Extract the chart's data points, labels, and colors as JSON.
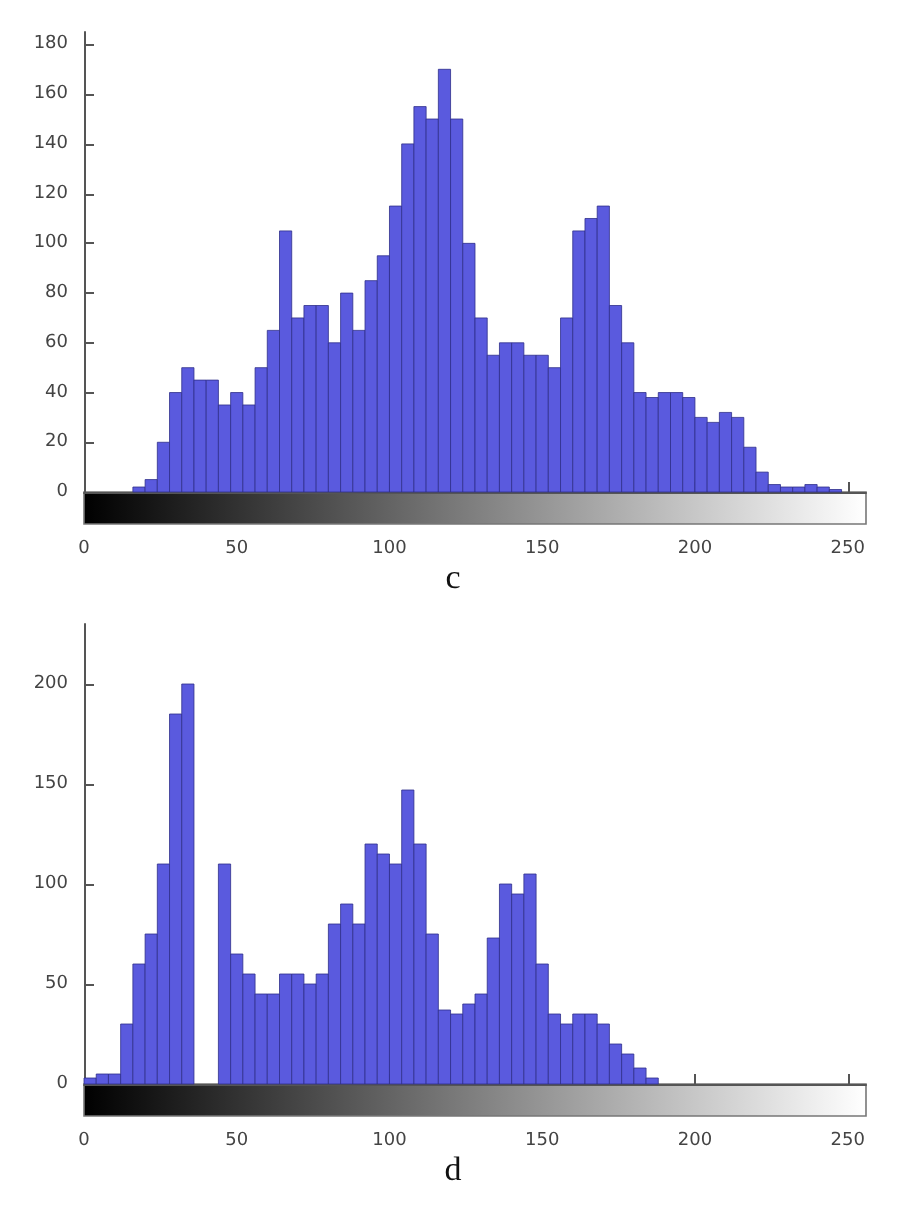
{
  "chart_data": [
    {
      "type": "histogram",
      "color": "#5a5ade",
      "bins": [
        0,
        4,
        8,
        12,
        16,
        20,
        24,
        28,
        32,
        36,
        40,
        44,
        48,
        52,
        56,
        60,
        64,
        68,
        72,
        76,
        80,
        84,
        88,
        92,
        96,
        100,
        104,
        108,
        112,
        116,
        120,
        124,
        128,
        132,
        136,
        140,
        144,
        148,
        152,
        156,
        160,
        164,
        168,
        172,
        176,
        180,
        184,
        188,
        192,
        196,
        200,
        204,
        208,
        212,
        216,
        220,
        224,
        228,
        232,
        236,
        240,
        244,
        248,
        252,
        256
      ],
      "values": [
        0,
        0,
        0,
        0,
        2,
        5,
        20,
        40,
        50,
        45,
        45,
        35,
        40,
        35,
        50,
        65,
        105,
        70,
        75,
        75,
        60,
        80,
        65,
        85,
        95,
        115,
        140,
        155,
        150,
        170,
        150,
        100,
        70,
        55,
        60,
        60,
        55,
        55,
        50,
        70,
        105,
        110,
        115,
        75,
        60,
        40,
        38,
        40,
        40,
        38,
        30,
        28,
        32,
        30,
        18,
        8,
        3,
        2,
        2,
        3,
        2,
        1,
        0,
        0
      ],
      "xlim": [
        0,
        256
      ],
      "xticks": [
        0,
        50,
        100,
        150,
        200,
        250
      ],
      "ylim": [
        0,
        185
      ],
      "yticks": [
        0,
        20,
        40,
        60,
        80,
        100,
        120,
        140,
        160,
        180
      ],
      "annotations": [
        "c"
      ]
    },
    {
      "type": "histogram",
      "color": "#5a5ade",
      "bins": [
        0,
        4,
        8,
        12,
        16,
        20,
        24,
        28,
        32,
        36,
        40,
        44,
        48,
        52,
        56,
        60,
        64,
        68,
        72,
        76,
        80,
        84,
        88,
        92,
        96,
        100,
        104,
        108,
        112,
        116,
        120,
        124,
        128,
        132,
        136,
        140,
        144,
        148,
        152,
        156,
        160,
        164,
        168,
        172,
        176,
        180,
        184,
        188,
        192,
        196,
        200,
        204,
        208,
        212,
        216,
        220,
        224,
        228,
        232,
        236,
        240,
        244,
        248,
        252,
        256
      ],
      "values": [
        3,
        5,
        5,
        30,
        60,
        75,
        110,
        185,
        200,
        null,
        null,
        110,
        65,
        55,
        45,
        45,
        55,
        55,
        50,
        55,
        80,
        90,
        80,
        120,
        115,
        110,
        147,
        120,
        75,
        37,
        35,
        40,
        45,
        73,
        100,
        95,
        105,
        60,
        35,
        30,
        35,
        35,
        30,
        20,
        15,
        8,
        3,
        0,
        0,
        0,
        0,
        0,
        0,
        0,
        0,
        0,
        0,
        0,
        0,
        0,
        0,
        0,
        0,
        0
      ],
      "xlim": [
        0,
        256
      ],
      "xticks": [
        0,
        50,
        100,
        150,
        200,
        250
      ],
      "ylim": [
        0,
        230
      ],
      "yticks": [
        0,
        50,
        100,
        150,
        200
      ],
      "annotations": [
        "d"
      ]
    }
  ]
}
